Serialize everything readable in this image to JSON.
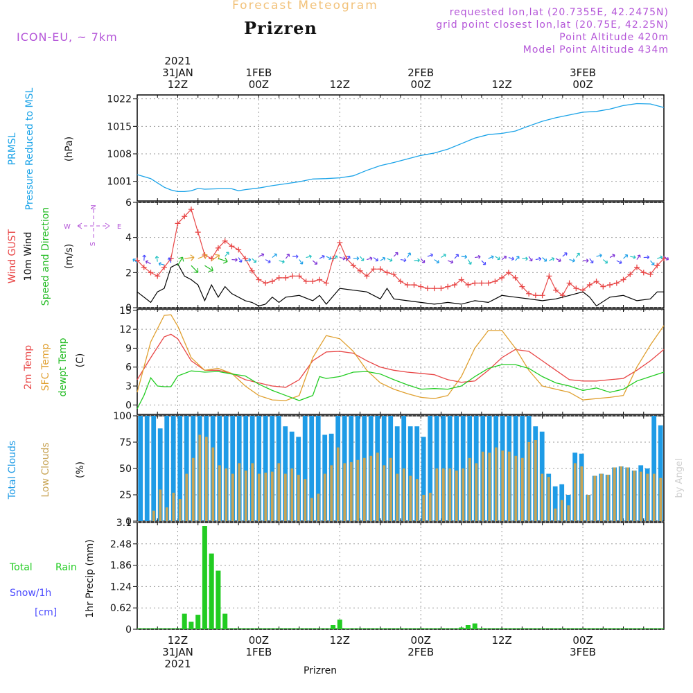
{
  "header": {
    "subtitle": "Forecast Meteogram",
    "title": "Prizren",
    "model": "ICON-EU, ~ 7km",
    "requested": "requested lon,lat (20.7355E, 42.2475N)",
    "grid_point": "grid point closest lon,lat (20.75E, 42.25N)",
    "point_alt": "Point Altitude 420m",
    "model_alt": "Model Point Altitude 434m",
    "footer": "Prizren",
    "credit": "by Angel"
  },
  "time_axis": {
    "hours": [
      0,
      72
    ],
    "ticks": [
      {
        "h": 0,
        "top": [
          "2021",
          "31JAN",
          "12Z"
        ],
        "bottom": [
          "12Z",
          "31JAN",
          "2021"
        ]
      },
      {
        "h": 12,
        "top": [
          "1FEB",
          "00Z"
        ],
        "bottom": [
          "00Z",
          "1FEB"
        ]
      },
      {
        "h": 24,
        "top": [
          "12Z"
        ],
        "bottom": [
          "12Z"
        ]
      },
      {
        "h": 36,
        "top": [
          "2FEB",
          "00Z"
        ],
        "bottom": [
          "00Z",
          "2FEB"
        ]
      },
      {
        "h": 48,
        "top": [
          "12Z"
        ],
        "bottom": [
          "12Z"
        ]
      },
      {
        "h": 60,
        "top": [
          "3FEB",
          "00Z"
        ],
        "bottom": [
          "00Z",
          "3FEB"
        ]
      }
    ]
  },
  "colors": {
    "pressure": "#1aa3e8",
    "gust": "#e84545",
    "wind": "#000000",
    "wind_dir": "#22bb22",
    "compass": "#b455d8",
    "temp": "#e84545",
    "sfc": "#e0a030",
    "dewpt": "#22cc22",
    "total_cloud": "#1e9be6",
    "low_cloud": "#c8a455",
    "rain": "#22cc22",
    "snow": "#4a4aff"
  },
  "labels": {
    "prmsl": [
      "PRMSL",
      "Pressure Reduced to MSL",
      "(hPa)"
    ],
    "wind": [
      "Wind GUST",
      "10m Wind",
      "Speed and Direction",
      "(m/s)"
    ],
    "compass": {
      "n": "N",
      "s": "S",
      "w": "W",
      "e": "E"
    },
    "temp": [
      "2m Temp",
      "SFC Temp",
      "dewpt Temp",
      "(C)"
    ],
    "clouds": [
      "Total Clouds",
      "Low Clouds",
      "(%)"
    ],
    "precip": [
      "Total",
      "Rain",
      "Snow/1h",
      "[cm]",
      "1hr Precip (mm)"
    ]
  },
  "chart_data": [
    {
      "type": "line",
      "title": "PRMSL Pressure Reduced to MSL",
      "ylabel": "(hPa)",
      "ylim": [
        996,
        1023
      ],
      "yticks": [
        1001,
        1008,
        1015,
        1022
      ],
      "series": [
        {
          "name": "PRMSL",
          "color": "#1aa3e8",
          "x": [
            -6,
            -4,
            -2,
            -1,
            0,
            1,
            2,
            3,
            4,
            6,
            8,
            9,
            10,
            12,
            14,
            16,
            18,
            20,
            22,
            24,
            26,
            28,
            30,
            32,
            34,
            36,
            38,
            40,
            42,
            44,
            46,
            48,
            50,
            52,
            54,
            56,
            58,
            60,
            62,
            64,
            66,
            68,
            70,
            72
          ],
          "values": [
            1002.7,
            1001.7,
            999.5,
            998.8,
            998.4,
            998.4,
            998.6,
            999.2,
            999.0,
            999.1,
            999.1,
            998.6,
            998.9,
            999.3,
            999.9,
            1000.4,
            1000.9,
            1001.6,
            1001.7,
            1001.9,
            1002.4,
            1003.8,
            1005.0,
            1005.8,
            1006.7,
            1007.6,
            1008.2,
            1009.2,
            1010.6,
            1012.0,
            1012.9,
            1013.2,
            1013.8,
            1015.1,
            1016.3,
            1017.2,
            1017.9,
            1018.6,
            1018.8,
            1019.4,
            1020.3,
            1020.8,
            1020.7,
            1019.8
          ]
        }
      ]
    },
    {
      "type": "line",
      "title": "Wind GUST, 10m Wind Speed and Direction",
      "ylabel": "(m/s)",
      "ylim": [
        0,
        6
      ],
      "yticks": [
        0,
        2,
        4,
        6
      ],
      "series": [
        {
          "name": "Wind GUST",
          "color": "#e84545",
          "marker": "+",
          "x": [
            -6,
            -5,
            -4,
            -3,
            -2,
            -1,
            0,
            1,
            2,
            3,
            4,
            5,
            6,
            7,
            8,
            9,
            10,
            11,
            12,
            13,
            14,
            15,
            16,
            17,
            18,
            19,
            20,
            21,
            22,
            23,
            24,
            25,
            26,
            27,
            28,
            29,
            30,
            31,
            32,
            33,
            34,
            35,
            36,
            37,
            38,
            39,
            40,
            41,
            42,
            43,
            44,
            45,
            46,
            47,
            48,
            49,
            50,
            51,
            52,
            53,
            54,
            55,
            56,
            57,
            58,
            59,
            60,
            61,
            62,
            63,
            64,
            65,
            66,
            67,
            68,
            69,
            70,
            71,
            72
          ],
          "values": [
            2.7,
            2.3,
            2.0,
            1.8,
            2.3,
            2.8,
            4.8,
            5.2,
            5.6,
            4.3,
            3.0,
            2.8,
            3.4,
            3.8,
            3.5,
            3.3,
            2.8,
            2.1,
            1.6,
            1.4,
            1.5,
            1.7,
            1.7,
            1.8,
            1.8,
            1.5,
            1.5,
            1.6,
            1.4,
            2.8,
            3.7,
            2.8,
            2.4,
            2.1,
            1.8,
            2.2,
            2.2,
            2.0,
            1.9,
            1.5,
            1.3,
            1.3,
            1.2,
            1.1,
            1.1,
            1.1,
            1.2,
            1.3,
            1.6,
            1.3,
            1.4,
            1.4,
            1.4,
            1.5,
            1.7,
            2.0,
            1.7,
            1.2,
            0.8,
            0.7,
            0.7,
            1.8,
            1.0,
            0.7,
            1.4,
            1.1,
            1.0,
            1.3,
            1.5,
            1.2,
            1.3,
            1.4,
            1.6,
            1.9,
            2.3,
            2.0,
            1.9,
            2.4,
            2.8
          ]
        },
        {
          "name": "10m Wind",
          "color": "#000000",
          "x": [
            -6,
            -4,
            -3,
            -2,
            -1,
            0,
            1,
            2,
            3,
            4,
            5,
            6,
            7,
            8,
            10,
            11,
            12,
            13,
            14,
            15,
            16,
            18,
            20,
            21,
            22,
            24,
            26,
            28,
            30,
            31,
            32,
            34,
            36,
            38,
            40,
            42,
            44,
            46,
            48,
            50,
            52,
            54,
            56,
            58,
            60,
            61,
            62,
            64,
            66,
            68,
            70,
            71,
            72
          ],
          "values": [
            0.9,
            0.3,
            0.9,
            1.1,
            2.3,
            2.5,
            1.8,
            1.6,
            1.3,
            0.4,
            1.3,
            0.6,
            1.2,
            0.8,
            0.4,
            0.3,
            0.1,
            0.2,
            0.6,
            0.3,
            0.6,
            0.7,
            0.4,
            0.7,
            0.2,
            1.1,
            1.0,
            0.9,
            0.5,
            1.1,
            0.5,
            0.4,
            0.3,
            0.2,
            0.3,
            0.2,
            0.4,
            0.3,
            0.7,
            0.6,
            0.5,
            0.4,
            0.5,
            0.7,
            0.9,
            0.6,
            0.1,
            0.6,
            0.7,
            0.4,
            0.5,
            0.9,
            0.9
          ]
        }
      ]
    },
    {
      "type": "line",
      "title": "2m Temp, SFC Temp, dewpt Temp",
      "ylabel": "(C)",
      "ylim": [
        -1.5,
        15.2
      ],
      "yticks": [
        0,
        3,
        6,
        9,
        12,
        15
      ],
      "series": [
        {
          "name": "2m Temp",
          "color": "#e84545",
          "x": [
            -6,
            -4,
            -2,
            -1,
            0,
            2,
            4,
            6,
            8,
            10,
            12,
            14,
            16,
            18,
            20,
            22,
            24,
            26,
            28,
            30,
            32,
            34,
            36,
            38,
            40,
            42,
            44,
            46,
            48,
            50,
            52,
            54,
            56,
            58,
            60,
            62,
            64,
            66,
            68,
            70,
            72
          ],
          "values": [
            4.0,
            7.5,
            10.8,
            11.2,
            10.5,
            7.0,
            5.5,
            5.5,
            5.0,
            4.0,
            3.5,
            3.0,
            2.8,
            4.0,
            7.0,
            8.4,
            8.5,
            8.2,
            7.0,
            6.0,
            5.5,
            5.2,
            5.0,
            4.8,
            4.0,
            3.6,
            3.8,
            5.5,
            7.5,
            8.8,
            8.5,
            7.0,
            5.5,
            4.0,
            3.8,
            3.8,
            4.0,
            4.2,
            5.5,
            7.0,
            8.8
          ]
        },
        {
          "name": "SFC Temp",
          "color": "#e0a030",
          "x": [
            -6,
            -4,
            -2,
            -1,
            0,
            2,
            4,
            6,
            8,
            10,
            12,
            14,
            16,
            18,
            20,
            22,
            24,
            26,
            28,
            30,
            32,
            34,
            36,
            38,
            40,
            42,
            44,
            46,
            48,
            50,
            52,
            54,
            56,
            58,
            60,
            62,
            64,
            66,
            68,
            70,
            72
          ],
          "values": [
            2.0,
            10.0,
            14.2,
            14.3,
            12.5,
            7.5,
            5.5,
            5.8,
            5.0,
            3.0,
            1.5,
            0.8,
            0.7,
            1.5,
            7.5,
            11.0,
            10.5,
            8.5,
            5.5,
            3.5,
            2.5,
            1.8,
            1.2,
            1.0,
            1.5,
            4.5,
            9.0,
            11.8,
            11.8,
            9.0,
            5.5,
            3.0,
            2.5,
            2.0,
            0.8,
            1.0,
            1.2,
            1.5,
            6.0,
            9.5,
            12.6
          ]
        },
        {
          "name": "dewpt Temp",
          "color": "#22cc22",
          "x": [
            -6,
            -5,
            -4,
            -3,
            -2,
            -1,
            0,
            2,
            4,
            6,
            8,
            10,
            12,
            14,
            16,
            18,
            20,
            21,
            22,
            24,
            26,
            28,
            30,
            32,
            34,
            36,
            38,
            40,
            42,
            44,
            46,
            48,
            50,
            52,
            54,
            56,
            58,
            60,
            62,
            64,
            66,
            68,
            70,
            72
          ],
          "values": [
            -0.6,
            1.5,
            4.3,
            3.0,
            2.9,
            2.9,
            4.6,
            5.4,
            5.2,
            5.3,
            4.9,
            4.6,
            3.3,
            2.3,
            1.5,
            0.7,
            1.5,
            4.5,
            4.2,
            4.5,
            5.2,
            5.3,
            4.9,
            4.0,
            3.2,
            2.5,
            2.6,
            2.5,
            3.0,
            4.5,
            5.8,
            6.4,
            6.4,
            5.8,
            4.5,
            3.5,
            3.0,
            2.3,
            2.7,
            2.0,
            2.5,
            3.8,
            4.5,
            5.2
          ]
        }
      ]
    },
    {
      "type": "bar",
      "title": "Total Clouds, Low Clouds",
      "ylabel": "(%)",
      "ylim": [
        0,
        100
      ],
      "yticks": [
        0,
        25,
        50,
        75,
        100
      ],
      "x_start_hour": -6,
      "series": [
        {
          "name": "Total Clouds",
          "color": "#1e9be6",
          "values": [
            100,
            100,
            100,
            88,
            100,
            100,
            100,
            100,
            100,
            100,
            100,
            100,
            100,
            100,
            100,
            100,
            100,
            100,
            100,
            100,
            100,
            100,
            90,
            85,
            80,
            100,
            100,
            100,
            82,
            83,
            100,
            100,
            100,
            100,
            100,
            100,
            100,
            100,
            100,
            90,
            100,
            90,
            90,
            80,
            100,
            100,
            100,
            100,
            100,
            100,
            100,
            100,
            100,
            100,
            100,
            100,
            100,
            100,
            100,
            100,
            90,
            85,
            45,
            33,
            35,
            25,
            65,
            64,
            25,
            43,
            45,
            44,
            51,
            52,
            51,
            48,
            53,
            50,
            100,
            91
          ]
        },
        {
          "name": "Low Clouds",
          "color": "#c8a455",
          "values": [
            0,
            0,
            10,
            30,
            13,
            27,
            21,
            45,
            60,
            82,
            80,
            70,
            53,
            50,
            45,
            55,
            48,
            55,
            45,
            46,
            47,
            55,
            45,
            50,
            44,
            40,
            22,
            26,
            45,
            53,
            70,
            55,
            56,
            58,
            60,
            62,
            65,
            53,
            60,
            45,
            50,
            43,
            40,
            25,
            27,
            50,
            50,
            50,
            48,
            50,
            60,
            55,
            66,
            65,
            70,
            67,
            66,
            62,
            60,
            75,
            77,
            45,
            42,
            12,
            20,
            15,
            55,
            52,
            25,
            43,
            45,
            44,
            51,
            52,
            51,
            48,
            47,
            45,
            45,
            41
          ]
        }
      ]
    },
    {
      "type": "bar",
      "title": "1hr Precip (mm)",
      "ylabel": "1hr Precip (mm)",
      "ylim": [
        0,
        3.1
      ],
      "yticks": [
        0,
        0.62,
        1.24,
        1.86,
        2.48,
        3.1
      ],
      "series": [
        {
          "name": "Total Rain",
          "color": "#22cc22",
          "x": [
            1,
            2,
            3,
            4,
            5,
            6,
            7,
            23,
            24,
            25,
            42,
            43,
            44,
            45
          ],
          "values": [
            0.45,
            0.22,
            0.42,
            3.0,
            2.2,
            1.7,
            0.45,
            0.12,
            0.28,
            0.03,
            0.05,
            0.12,
            0.17,
            0.03
          ]
        }
      ]
    }
  ]
}
